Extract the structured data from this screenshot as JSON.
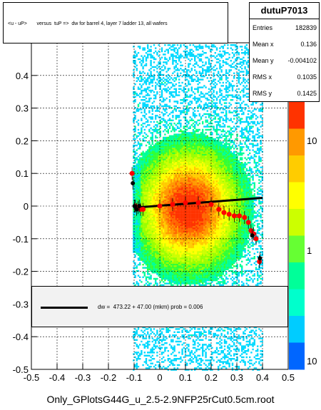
{
  "chart_data": {
    "type": "scatter",
    "title": "<u - uP>       versus  tuP =>  dw for barrel 4, layer 7 ladder 13, all wafers",
    "xlabel": "",
    "ylabel": "",
    "xlim": [
      -0.5,
      0.5
    ],
    "ylim": [
      -0.5,
      0.5
    ],
    "xticks": [
      "-0.5",
      "-0.4",
      "-0.3",
      "-0.2",
      "-0.1",
      "0",
      "0.1",
      "0.2",
      "0.3",
      "0.4",
      "0.5"
    ],
    "yticks": [
      "-0.5",
      "-0.4",
      "-0.3",
      "-0.2",
      "-0.1",
      "0",
      "0.1",
      "0.2",
      "0.3",
      "0.4"
    ],
    "zticks": [
      "10",
      "1",
      "10"
    ],
    "series": [
      {
        "kind": "profile_red",
        "x": [
          -0.108,
          -0.095,
          -0.085,
          -0.075,
          -0.065,
          0.0,
          0.05,
          0.1,
          0.15,
          0.2,
          0.23,
          0.25,
          0.27,
          0.29,
          0.31,
          0.33,
          0.345,
          0.355,
          0.365,
          0.375,
          0.388
        ],
        "y": [
          0.1,
          0.0,
          -0.005,
          -0.01,
          -0.01,
          0.0,
          0.005,
          0.01,
          0.01,
          0.005,
          -0.01,
          -0.02,
          -0.025,
          -0.03,
          -0.03,
          -0.035,
          -0.05,
          -0.075,
          -0.085,
          -0.1,
          -0.17
        ]
      },
      {
        "kind": "profile_black",
        "x": [
          -0.105,
          -0.098,
          -0.09,
          -0.08,
          0.36,
          0.39
        ],
        "y": [
          0.07,
          0.0,
          -0.01,
          0.0,
          -0.09,
          -0.16
        ]
      }
    ],
    "fit": {
      "x": [
        -0.1,
        0.4
      ],
      "y": [
        -0.005,
        0.025
      ]
    }
  },
  "stats": {
    "name": "dutuP7013",
    "rows": [
      {
        "label": "Entries",
        "value": "182839"
      },
      {
        "label": "Mean x",
        "value": "0.136"
      },
      {
        "label": "Mean y",
        "value": "-0.004102"
      },
      {
        "label": "RMS x",
        "value": "0.1035"
      },
      {
        "label": "RMS y",
        "value": "0.1425"
      }
    ]
  },
  "fit_text": "dw =  473.22 + 47.00 (mkm) prob = 0.006",
  "footer": "Only_GPlotsG44G_u_2.5-2.9NFP25rCut0.5cm.root"
}
